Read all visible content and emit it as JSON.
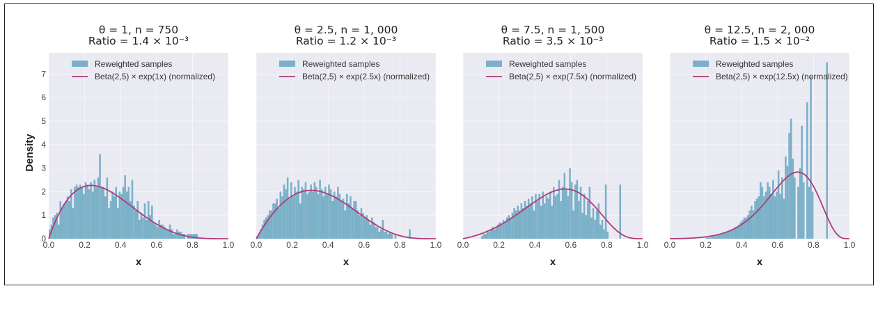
{
  "colors": {
    "background": "#eaeaf2",
    "bars": "#7ab0c8",
    "curve": "#b03a78",
    "grid": "#ffffff"
  },
  "chart_data": [
    {
      "type": "bar",
      "title_line1": "θ = 1, n = 750",
      "title_line2": "Ratio = 1.4 × 10⁻³",
      "xlabel": "x",
      "ylabel": "Density",
      "xlim": [
        0,
        1
      ],
      "ylim": [
        0,
        7.9
      ],
      "xticks": [
        "0.0",
        "0.2",
        "0.4",
        "0.6",
        "0.8",
        "1.0"
      ],
      "yticks": [
        "0",
        "1",
        "2",
        "3",
        "4",
        "5",
        "6",
        "7"
      ],
      "grid": true,
      "legend_placement": "top",
      "legend": [
        "Reweighted samples",
        "Beta(2,5) × exp(1x) (normalized)"
      ],
      "curve": {
        "alpha": 2,
        "beta": 5,
        "theta": 1
      },
      "bin_start": 0.0,
      "bin_width": 0.01,
      "values": [
        0.4,
        0.6,
        0.9,
        1.0,
        1.1,
        0.6,
        1.6,
        1.3,
        1.5,
        1.6,
        1.8,
        1.6,
        2.1,
        1.3,
        2.2,
        2.3,
        2.2,
        2.3,
        2.2,
        1.9,
        2.4,
        2.3,
        2.1,
        2.4,
        2.0,
        2.5,
        2.2,
        2.6,
        3.6,
        2.2,
        2.2,
        1.8,
        2.6,
        1.3,
        1.6,
        2.0,
        1.8,
        2.2,
        1.3,
        2.0,
        1.9,
        2.2,
        2.7,
        2.0,
        2.2,
        1.6,
        2.5,
        1.4,
        1.2,
        1.6,
        0.8,
        1.1,
        0.9,
        1.5,
        0.8,
        1.6,
        1.0,
        1.4,
        0.7,
        0.6,
        0.5,
        0.8,
        0.6,
        0.6,
        0.5,
        0.4,
        0.4,
        0.6,
        0.4,
        0.2,
        0.2,
        0.4,
        0.3,
        0.3,
        0.2,
        0.2,
        0.0,
        0.2,
        0.2,
        0.2,
        0.2,
        0.2,
        0.2,
        0.0
      ]
    },
    {
      "type": "bar",
      "title_line1": "θ = 2.5, n = 1, 000",
      "title_line2": "Ratio = 1.2 × 10⁻³",
      "xlabel": "x",
      "ylabel": "",
      "xlim": [
        0,
        1
      ],
      "ylim": [
        0,
        7.9
      ],
      "xticks": [
        "0.0",
        "0.2",
        "0.4",
        "0.6",
        "0.8",
        "1.0"
      ],
      "grid": true,
      "legend_placement": "top",
      "legend": [
        "Reweighted samples",
        "Beta(2,5) × exp(2.5x) (normalized)"
      ],
      "curve": {
        "alpha": 2,
        "beta": 5,
        "theta": 2.5
      },
      "bin_start": 0.0,
      "bin_width": 0.01,
      "values": [
        0.1,
        0.2,
        0.4,
        0.6,
        0.8,
        0.9,
        1.0,
        1.2,
        1.2,
        1.5,
        1.5,
        1.7,
        1.3,
        2.0,
        1.8,
        2.3,
        2.1,
        2.6,
        1.7,
        2.4,
        1.8,
        2.2,
        2.0,
        2.5,
        1.5,
        2.2,
        2.1,
        2.4,
        1.9,
        2.0,
        2.3,
        2.0,
        2.4,
        2.2,
        1.9,
        2.5,
        2.1,
        1.8,
        2.2,
        1.9,
        2.3,
        2.1,
        1.6,
        2.0,
        1.8,
        2.2,
        1.9,
        1.6,
        1.7,
        1.2,
        1.9,
        1.5,
        1.8,
        1.3,
        1.6,
        1.6,
        1.2,
        1.0,
        1.3,
        1.1,
        0.9,
        1.0,
        0.8,
        0.6,
        0.9,
        0.7,
        0.5,
        0.5,
        0.3,
        0.4,
        0.8,
        0.3,
        0.3,
        0.2,
        0.3,
        0.2,
        0.0,
        0.2,
        0.0,
        0.0,
        0.0,
        0.0,
        0.0,
        0.0,
        0.0,
        0.4
      ]
    },
    {
      "type": "bar",
      "title_line1": "θ = 7.5, n = 1, 500",
      "title_line2": "Ratio = 3.5 × 10⁻³",
      "xlabel": "x",
      "ylabel": "",
      "xlim": [
        0,
        1
      ],
      "ylim": [
        0,
        7.9
      ],
      "xticks": [
        "0.0",
        "0.2",
        "0.4",
        "0.6",
        "0.8",
        "1.0"
      ],
      "grid": true,
      "legend_placement": "top",
      "legend": [
        "Reweighted samples",
        "Beta(2,5) × exp(7.5x) (normalized)"
      ],
      "curve": {
        "alpha": 2,
        "beta": 5,
        "theta": 7.5
      },
      "bin_start": 0.1,
      "bin_width": 0.01,
      "values": [
        0.1,
        0.2,
        0.2,
        0.3,
        0.3,
        0.4,
        0.5,
        0.4,
        0.5,
        0.6,
        0.7,
        0.6,
        0.8,
        0.7,
        0.9,
        1.0,
        0.9,
        1.1,
        1.3,
        1.2,
        1.4,
        1.2,
        1.5,
        1.3,
        1.6,
        1.4,
        1.7,
        1.5,
        1.8,
        1.2,
        1.9,
        1.6,
        1.9,
        1.4,
        2.0,
        1.5,
        1.8,
        1.7,
        2.0,
        1.4,
        2.2,
        1.8,
        1.9,
        2.5,
        1.6,
        2.2,
        2.8,
        2.1,
        1.8,
        3.0,
        2.4,
        1.2,
        2.3,
        2.5,
        1.6,
        2.2,
        1.1,
        1.9,
        1.0,
        1.6,
        2.2,
        0.9,
        1.3,
        0.8,
        1.2,
        1.5,
        0.6,
        0.8,
        0.4,
        2.3,
        0.3,
        0.0,
        0.0,
        0.0,
        0.0,
        0.0,
        0.0,
        2.3
      ]
    },
    {
      "type": "bar",
      "title_line1": "θ = 12.5, n = 2, 000",
      "title_line2": "Ratio = 1.5 × 10⁻²",
      "xlabel": "x",
      "ylabel": "",
      "xlim": [
        0,
        1
      ],
      "ylim": [
        0,
        7.9
      ],
      "xticks": [
        "0.0",
        "0.2",
        "0.4",
        "0.6",
        "0.8",
        "1.0"
      ],
      "grid": true,
      "legend_placement": "top",
      "legend": [
        "Reweighted samples",
        "Beta(2,5) × exp(12.5x) (normalized)"
      ],
      "curve": {
        "alpha": 2,
        "beta": 5,
        "theta": 12.5
      },
      "bin_start": 0.2,
      "bin_width": 0.01,
      "values": [
        0.05,
        0.05,
        0.05,
        0.1,
        0.1,
        0.1,
        0.15,
        0.15,
        0.2,
        0.2,
        0.25,
        0.3,
        0.3,
        0.35,
        0.4,
        0.4,
        0.5,
        0.5,
        0.6,
        0.7,
        0.8,
        0.9,
        0.9,
        1.0,
        1.2,
        1.4,
        1.2,
        1.6,
        1.7,
        1.8,
        2.4,
        2.2,
        1.8,
        2.0,
        2.4,
        2.2,
        1.9,
        2.5,
        1.8,
        2.0,
        2.9,
        1.9,
        2.6,
        1.7,
        3.5,
        3.1,
        4.5,
        5.1,
        3.4,
        2.6,
        0.0,
        2.2,
        3.0,
        4.8,
        2.4,
        0.0,
        5.8,
        2.2,
        6.9,
        2.0,
        0.0,
        0.0,
        0.0,
        0.0,
        0.0,
        0.0,
        0.0,
        7.5
      ]
    }
  ]
}
